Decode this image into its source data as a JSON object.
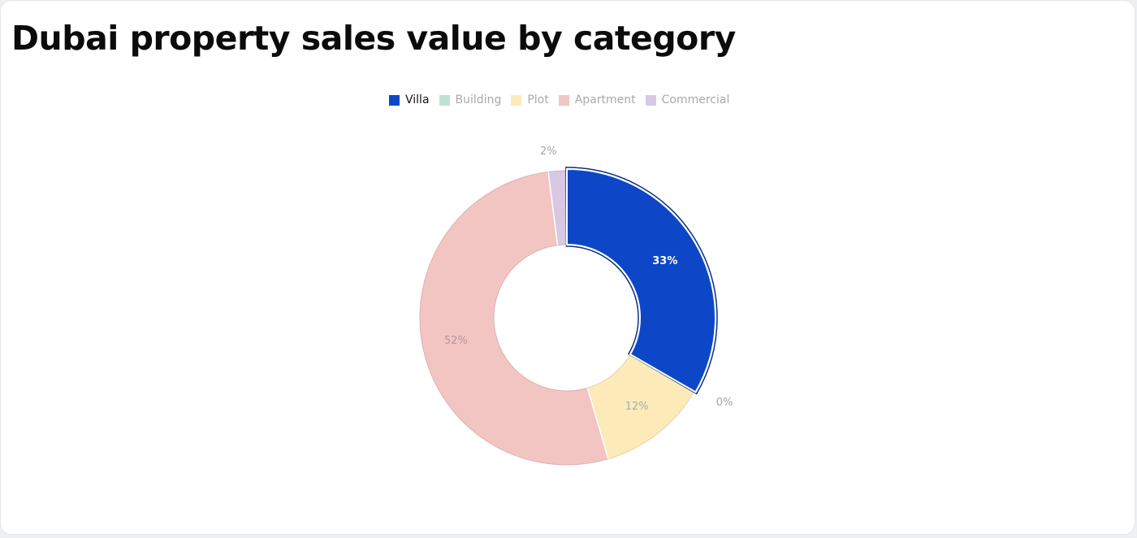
{
  "page": {
    "title": "Dubai property sales value by category"
  },
  "chart_data": {
    "type": "pie",
    "title": "Dubai property sales value by category",
    "series": [
      {
        "name": "Villa",
        "value": 33,
        "label": "33%",
        "color": "#0d47c7",
        "active": true,
        "label_color": "#ffffff"
      },
      {
        "name": "Building",
        "value": 0,
        "label": "0%",
        "color": "#bfe3d2",
        "active": false,
        "label_color": "#a4a4a4"
      },
      {
        "name": "Plot",
        "value": 12,
        "label": "12%",
        "color": "#fcebb8",
        "active": false,
        "label_color": "#ababab"
      },
      {
        "name": "Apartment",
        "value": 52,
        "label": "52%",
        "color": "#f3c5c2",
        "active": false,
        "label_color": "#b09a98"
      },
      {
        "name": "Commercial",
        "value": 2,
        "label": "2%",
        "color": "#d8c8e4",
        "active": false,
        "label_color": "#a4a4a4"
      }
    ],
    "legend_position": "top-center",
    "donut": true
  }
}
